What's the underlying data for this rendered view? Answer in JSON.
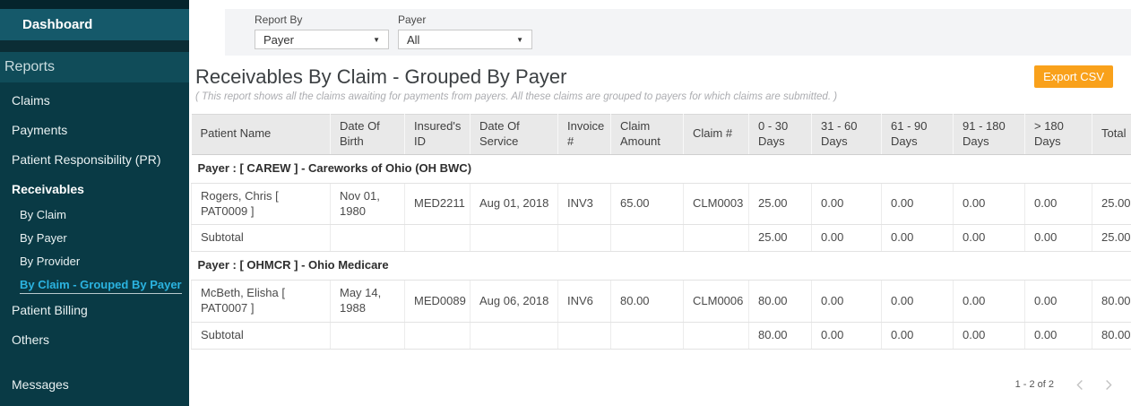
{
  "theme": {
    "accent_orange": "#f9a11b",
    "active_link_cyan": "#2bb3e0",
    "sidebar_teal": "#093a45",
    "sidebar_band_teal": "#15596a"
  },
  "sidebar": {
    "brand": "Dashboard",
    "items": [
      {
        "label": "Reports",
        "type": "section"
      },
      {
        "label": "Claims",
        "type": "item"
      },
      {
        "label": "Payments",
        "type": "item"
      },
      {
        "label": "Patient Responsibility (PR)",
        "type": "item"
      },
      {
        "label": "Receivables",
        "type": "item-bold"
      },
      {
        "label": "By Claim",
        "type": "sub"
      },
      {
        "label": "By Payer",
        "type": "sub"
      },
      {
        "label": "By Provider",
        "type": "sub"
      },
      {
        "label": "By Claim - Grouped By Payer",
        "type": "sub-active"
      },
      {
        "label": "Patient Billing",
        "type": "item"
      },
      {
        "label": "Others",
        "type": "item"
      },
      {
        "label": "Messages",
        "type": "item"
      }
    ]
  },
  "filters": {
    "report_by": {
      "label": "Report By",
      "value": "Payer",
      "caret": "▼"
    },
    "payer": {
      "label": "Payer",
      "value": "All",
      "caret": "▼"
    }
  },
  "page": {
    "title": "Receivables By Claim - Grouped By Payer",
    "subtitle": "( This report shows all the claims awaiting for payments from payers. All these claims are grouped to payers for which claims are submitted. )",
    "export_label": "Export CSV"
  },
  "table": {
    "columns": [
      "Patient Name",
      "Date Of Birth",
      "Insured's ID",
      "Date Of Service",
      "Invoice #",
      "Claim Amount",
      "Claim #",
      "0 - 30 Days",
      "31 - 60 Days",
      "61 - 90 Days",
      "91 - 180 Days",
      "> 180 Days",
      "Total"
    ],
    "groups": [
      {
        "payer": "Payer : [ CAREW ] - Careworks of Ohio (OH BWC)",
        "rows": [
          [
            "Rogers, Chris [ PAT0009 ]",
            "Nov 01, 1980",
            "MED2211",
            "Aug 01, 2018",
            "INV3",
            "65.00",
            "CLM0003",
            "25.00",
            "0.00",
            "0.00",
            "0.00",
            "0.00",
            "25.00"
          ]
        ],
        "subtotal": [
          "Subtotal",
          "",
          "",
          "",
          "",
          "",
          "",
          "25.00",
          "0.00",
          "0.00",
          "0.00",
          "0.00",
          "25.00"
        ]
      },
      {
        "payer": "Payer : [ OHMCR ] - Ohio Medicare",
        "rows": [
          [
            "McBeth, Elisha [ PAT0007 ]",
            "May 14, 1988",
            "MED0089",
            "Aug 06, 2018",
            "INV6",
            "80.00",
            "CLM0006",
            "80.00",
            "0.00",
            "0.00",
            "0.00",
            "0.00",
            "80.00"
          ]
        ],
        "subtotal": [
          "Subtotal",
          "",
          "",
          "",
          "",
          "",
          "",
          "80.00",
          "0.00",
          "0.00",
          "0.00",
          "0.00",
          "80.00"
        ]
      }
    ]
  },
  "pagination": {
    "range": "1 - 2 of 2"
  }
}
